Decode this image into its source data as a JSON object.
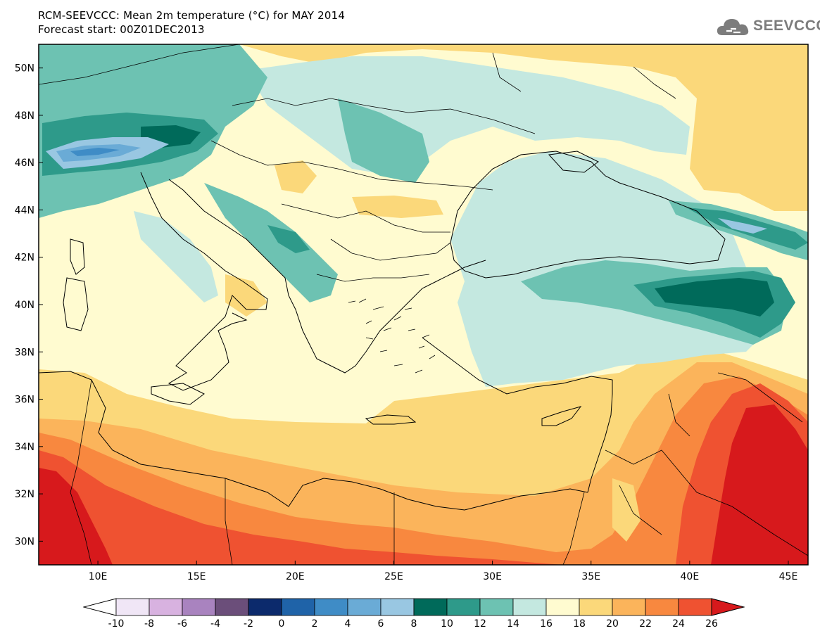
{
  "header": {
    "title_line1": "RCM-SEEVCCC: Mean 2m temperature (°C) for MAY 2014",
    "title_line2": "Forecast start: 00Z01DEC2013"
  },
  "logo": {
    "text": "SEEVCCC",
    "icon": "cloud-icon",
    "color": "#7c7c7c"
  },
  "map": {
    "lon_range": [
      7,
      46
    ],
    "lat_range": [
      29,
      51
    ],
    "lat_ticks": [
      "50N",
      "48N",
      "46N",
      "44N",
      "42N",
      "40N",
      "38N",
      "36N",
      "34N",
      "32N",
      "30N"
    ],
    "lon_ticks": [
      "10E",
      "15E",
      "20E",
      "25E",
      "30E",
      "35E",
      "40E",
      "45E"
    ]
  },
  "colorbar": {
    "labels": [
      "-10",
      "-8",
      "-6",
      "-4",
      "-2",
      "0",
      "2",
      "4",
      "6",
      "8",
      "10",
      "12",
      "14",
      "16",
      "18",
      "20",
      "22",
      "24",
      "26"
    ],
    "colors": [
      "#f0e6f6",
      "#d8b2e0",
      "#a983bf",
      "#6b4e7a",
      "#0c2a6c",
      "#1f63a8",
      "#3f8cc6",
      "#6aabd6",
      "#99c7e2",
      "#006a5a",
      "#2e9a8a",
      "#6dc2b2",
      "#c4e8e0",
      "#fffbd0",
      "#fbd87a",
      "#fbb45b",
      "#f8883f",
      "#ef5231",
      "#d7191c"
    ],
    "under_color": "#ffffff",
    "over_color": "#d7191c"
  }
}
